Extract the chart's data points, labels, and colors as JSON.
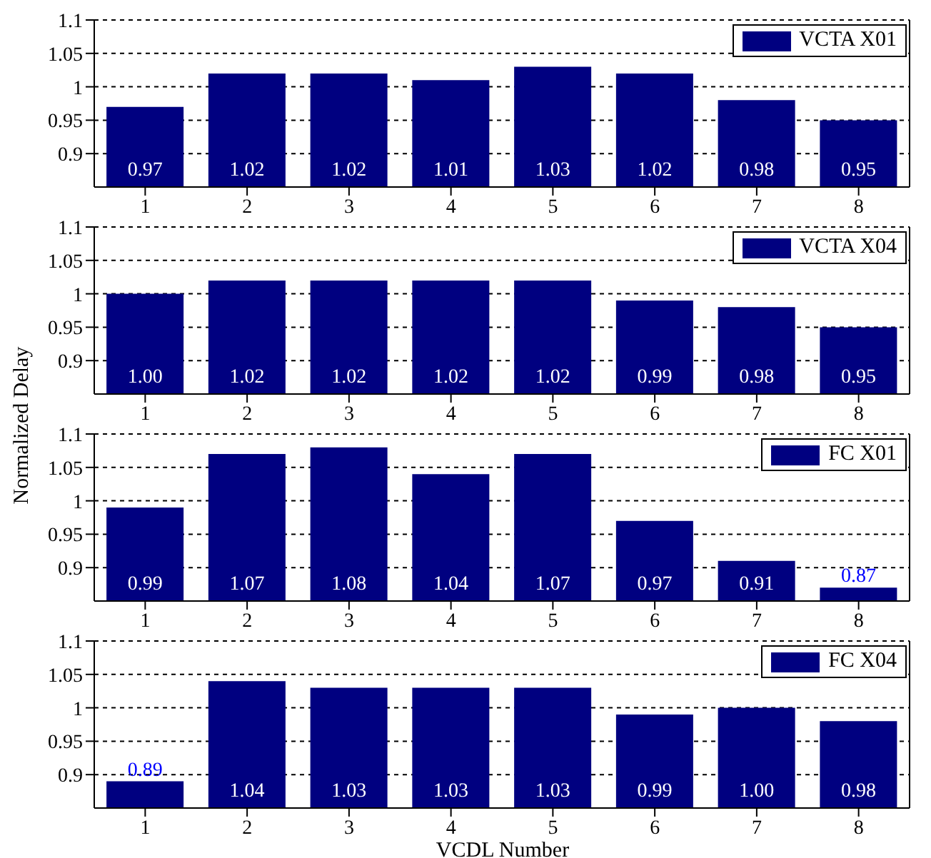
{
  "chart_data": [
    {
      "type": "bar",
      "categories": [
        "1",
        "2",
        "3",
        "4",
        "5",
        "6",
        "7",
        "8"
      ],
      "series": [
        {
          "name": "VCTA X01",
          "color": "#000080",
          "values": [
            0.97,
            1.02,
            1.02,
            1.01,
            1.03,
            1.02,
            0.98,
            0.95
          ],
          "value_labels": [
            "0.97",
            "1.02",
            "1.02",
            "1.01",
            "1.03",
            "1.02",
            "0.98",
            "0.95"
          ]
        }
      ],
      "ylim": [
        0.85,
        1.1
      ],
      "yticks": [
        0.9,
        0.95,
        1,
        1.05,
        1.1
      ],
      "grid": "y",
      "legend": "top right"
    },
    {
      "type": "bar",
      "categories": [
        "1",
        "2",
        "3",
        "4",
        "5",
        "6",
        "7",
        "8"
      ],
      "series": [
        {
          "name": "VCTA X04",
          "color": "#000080",
          "values": [
            1.0,
            1.02,
            1.02,
            1.02,
            1.02,
            0.99,
            0.98,
            0.95
          ],
          "value_labels": [
            "1.00",
            "1.02",
            "1.02",
            "1.02",
            "1.02",
            "0.99",
            "0.98",
            "0.95"
          ]
        }
      ],
      "ylim": [
        0.85,
        1.1
      ],
      "yticks": [
        0.9,
        0.95,
        1,
        1.05,
        1.1
      ],
      "grid": "y",
      "legend": "top right"
    },
    {
      "type": "bar",
      "categories": [
        "1",
        "2",
        "3",
        "4",
        "5",
        "6",
        "7",
        "8"
      ],
      "series": [
        {
          "name": "FC X01",
          "color": "#000080",
          "values": [
            0.99,
            1.07,
            1.08,
            1.04,
            1.07,
            0.97,
            0.91,
            0.87
          ],
          "value_labels": [
            "0.99",
            "1.07",
            "1.08",
            "1.04",
            "1.07",
            "0.97",
            "0.91",
            "0.87"
          ]
        }
      ],
      "ylim": [
        0.85,
        1.1
      ],
      "yticks": [
        0.9,
        0.95,
        1,
        1.05,
        1.1
      ],
      "grid": "y",
      "legend": "top right",
      "ylabel": "Normalized Delay"
    },
    {
      "type": "bar",
      "categories": [
        "1",
        "2",
        "3",
        "4",
        "5",
        "6",
        "7",
        "8"
      ],
      "series": [
        {
          "name": "FC X04",
          "color": "#000080",
          "values": [
            0.89,
            1.04,
            1.03,
            1.03,
            1.03,
            0.99,
            1.0,
            0.98
          ],
          "value_labels": [
            "0.89",
            "1.04",
            "1.03",
            "1.03",
            "1.03",
            "0.99",
            "1.00",
            "0.98"
          ]
        }
      ],
      "ylim": [
        0.85,
        1.1
      ],
      "yticks": [
        0.9,
        0.95,
        1,
        1.05,
        1.1
      ],
      "grid": "y",
      "legend": "top right",
      "xlabel": "VCDL Number"
    }
  ]
}
